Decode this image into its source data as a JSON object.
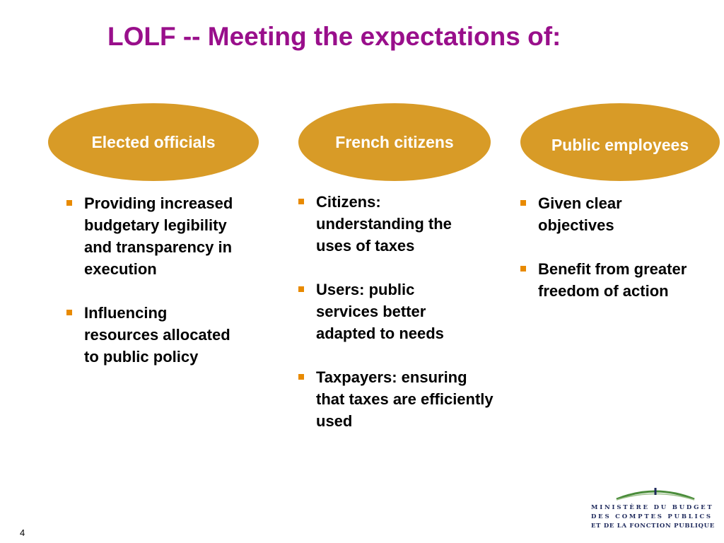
{
  "slide": {
    "title": "LOLF -- Meeting the expectations of:",
    "page_number": "4"
  },
  "colors": {
    "title": "#990f8b",
    "oval_fill": "#d89b27",
    "bullet": "#e88a00",
    "logo_text": "#1f2a5c",
    "logo_arc": "#4a8c3a"
  },
  "columns": [
    {
      "heading": "Elected officials",
      "bullets": [
        "Providing increased budgetary legibility and transparency in execution",
        "Influencing resources allocated to public policy"
      ]
    },
    {
      "heading": "French citizens",
      "bullets": [
        "Citizens: understanding the uses of taxes",
        "Users: public services better adapted to needs",
        "Taxpayers: ensuring that taxes are efficiently used"
      ]
    },
    {
      "heading": "Public employees",
      "bullets": [
        "Given clear objectives",
        "Benefit from greater freedom of action"
      ]
    }
  ],
  "logo": {
    "line1": "MINISTÈRE DU BUDGET",
    "line2": "DES COMPTES PUBLICS",
    "line3": "ET DE LA FONCTION PUBLIQUE",
    "icon": "ministry-arc-logo"
  }
}
